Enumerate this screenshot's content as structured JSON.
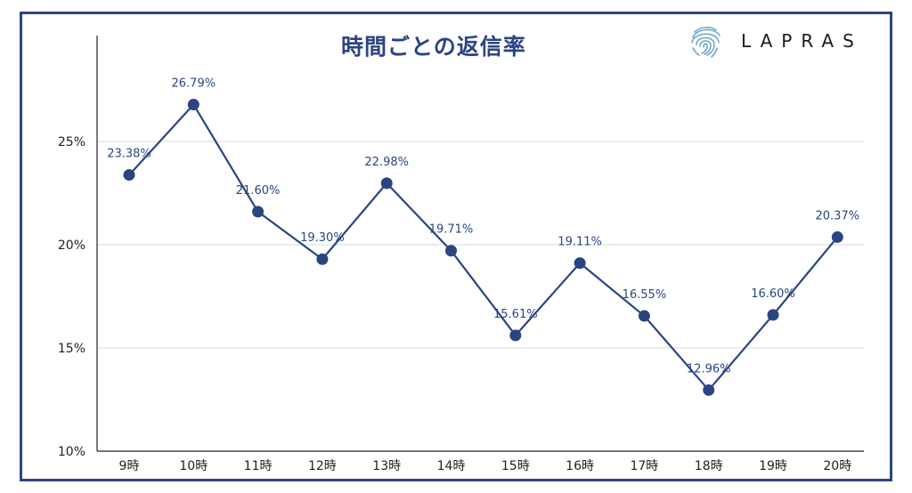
{
  "brand": {
    "name": "LAPRAS",
    "logo_icon": "fingerprint-icon"
  },
  "colors": {
    "line": "#2b4583",
    "grid": "#d9d9d9",
    "axis": "#222222",
    "label": "#2b4583",
    "tick": "#222222",
    "frame": "#2b4583"
  },
  "chart_data": {
    "type": "line",
    "title": "時間ごとの返信率",
    "xlabel": "",
    "ylabel": "",
    "categories": [
      "9時",
      "10時",
      "11時",
      "12時",
      "13時",
      "14時",
      "15時",
      "16時",
      "17時",
      "18時",
      "19時",
      "20時"
    ],
    "series": [
      {
        "values": [
          23.38,
          26.79,
          21.6,
          19.3,
          22.98,
          19.71,
          15.61,
          19.11,
          16.55,
          12.96,
          16.6,
          20.37
        ],
        "data_labels": [
          "23.38%",
          "26.79%",
          "21.60%",
          "19.30%",
          "22.98%",
          "19.71%",
          "15.61%",
          "19.11%",
          "16.55%",
          "12.96%",
          "16.60%",
          "20.37%"
        ]
      }
    ],
    "ylim": [
      10,
      28
    ],
    "yticks": [
      10,
      15,
      20,
      25
    ],
    "ytick_labels": [
      "10%",
      "15%",
      "20%",
      "25%"
    ],
    "grid": true,
    "legend": "none"
  }
}
